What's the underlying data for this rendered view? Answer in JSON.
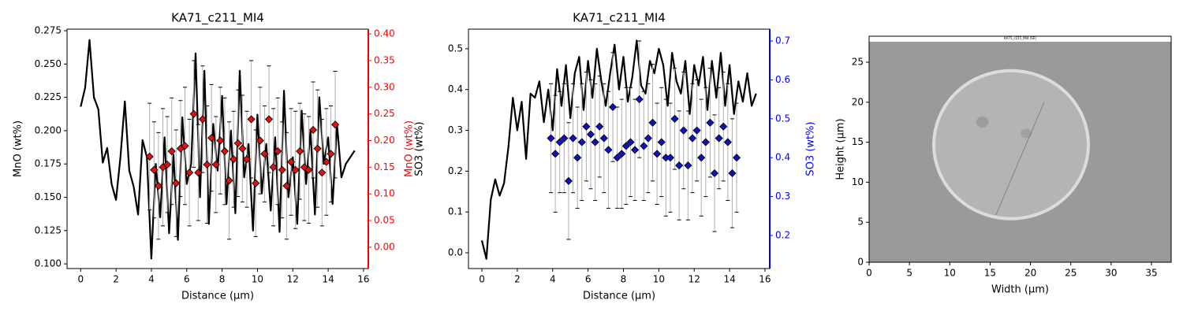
{
  "chart_data": [
    {
      "type": "dual",
      "title": "KA71_c211_MI4",
      "xlabel": "Distance (µm)",
      "ylabel": "MnO (wt%)",
      "y2label": "MnO (wt%)",
      "y2color": "#ff0000",
      "xlim": [
        -0.77,
        16.27
      ],
      "xticks": [
        0,
        2,
        4,
        6,
        8,
        10,
        12,
        14,
        16
      ],
      "ylim": [
        0.0965,
        0.2762
      ],
      "yticks": [
        {
          "value": 0.1,
          "label": "0.100"
        },
        0.125,
        {
          "value": 0.15,
          "label": "0.150"
        },
        0.175,
        {
          "value": 0.2,
          "label": "0.200"
        },
        0.225,
        {
          "value": 0.25,
          "label": "0.250"
        },
        0.275
      ],
      "y2lim": [
        -0.04,
        0.409
      ],
      "y2ticks": [
        {
          "value": 0,
          "label": "0.00"
        },
        0.05,
        {
          "value": 0.1,
          "label": "0.10"
        },
        0.15,
        {
          "value": 0.2,
          "label": "0.20"
        },
        0.25,
        {
          "value": 0.3,
          "label": "0.30"
        },
        0.35,
        {
          "value": 0.4,
          "label": "0.40"
        }
      ],
      "series": [
        {
          "type": "line",
          "color": "#000000",
          "x": [
            0,
            0.25,
            0.5,
            0.75,
            1,
            1.25,
            1.5,
            1.75,
            2,
            2.25,
            2.5,
            2.75,
            3,
            3.25,
            3.5,
            3.75,
            4,
            4.25,
            4.5,
            4.75,
            5,
            5.25,
            5.5,
            5.75,
            6,
            6.25,
            6.5,
            6.75,
            7,
            7.25,
            7.5,
            7.75,
            8,
            8.25,
            8.5,
            8.75,
            9,
            9.25,
            9.5,
            9.75,
            10,
            10.25,
            10.5,
            10.75,
            11,
            11.25,
            11.5,
            11.75,
            12,
            12.25,
            12.5,
            12.75,
            13,
            13.25,
            13.5,
            13.75,
            14,
            14.25,
            14.5,
            14.75,
            15,
            15.25,
            15.5
          ],
          "values": [
            0.218,
            0.232,
            0.268,
            0.225,
            0.216,
            0.176,
            0.187,
            0.16,
            0.148,
            0.18,
            0.222,
            0.17,
            0.158,
            0.137,
            0.193,
            0.18,
            0.104,
            0.175,
            0.135,
            0.195,
            0.123,
            0.182,
            0.118,
            0.21,
            0.16,
            0.175,
            0.258,
            0.15,
            0.245,
            0.13,
            0.205,
            0.17,
            0.226,
            0.145,
            0.2,
            0.138,
            0.245,
            0.165,
            0.19,
            0.125,
            0.212,
            0.153,
            0.19,
            0.14,
            0.195,
            0.124,
            0.23,
            0.15,
            0.18,
            0.13,
            0.215,
            0.16,
            0.2,
            0.137,
            0.225,
            0.175,
            0.195,
            0.145,
            0.205,
            0.165,
            0.175,
            0.18,
            0.185
          ]
        },
        {
          "type": "scatter",
          "axis": "y2",
          "color": "#dd1111",
          "x": [
            3.9,
            4.15,
            4.4,
            4.65,
            4.9,
            5.15,
            5.4,
            5.65,
            5.9,
            6.15,
            6.4,
            6.65,
            6.9,
            7.15,
            7.4,
            7.65,
            7.9,
            8.15,
            8.4,
            8.65,
            8.9,
            9.15,
            9.4,
            9.65,
            9.9,
            10.15,
            10.4,
            10.65,
            10.9,
            11.15,
            11.4,
            11.65,
            11.9,
            12.15,
            12.4,
            12.65,
            12.9,
            13.15,
            13.4,
            13.65,
            13.9,
            14.15,
            14.4
          ],
          "values": [
            0.17,
            0.145,
            0.115,
            0.15,
            0.155,
            0.18,
            0.12,
            0.185,
            0.19,
            0.14,
            0.25,
            0.14,
            0.24,
            0.155,
            0.205,
            0.155,
            0.2,
            0.18,
            0.125,
            0.165,
            0.195,
            0.185,
            0.165,
            0.24,
            0.12,
            0.2,
            0.175,
            0.24,
            0.15,
            0.18,
            0.145,
            0.115,
            0.16,
            0.145,
            0.18,
            0.15,
            0.145,
            0.22,
            0.185,
            0.14,
            0.16,
            0.175,
            0.23
          ],
          "errors": [
            0.1,
            0.09,
            0.1,
            0.11,
            0.09,
            0.1,
            0.1,
            0.09,
            0.11,
            0.1,
            0.1,
            0.09,
            0.1,
            0.11,
            0.1,
            0.09,
            0.1,
            0.1,
            0.11,
            0.09,
            0.1,
            0.1,
            0.09,
            0.11,
            0.1,
            0.1,
            0.09,
            0.1,
            0.11,
            0.1,
            0.09,
            0.1,
            0.1,
            0.11,
            0.09,
            0.1,
            0.1,
            0.09,
            0.11,
            0.1,
            0.1,
            0.09,
            0.1
          ]
        }
      ]
    },
    {
      "type": "dual",
      "title": "KA71_c211_MI4",
      "xlabel": "Distance (µm)",
      "ylabel": "SO3 (wt%)",
      "y2label": "SO3 (wt%)",
      "y2color": "#0000ff",
      "xlim": [
        -0.76,
        16.27
      ],
      "xticks": [
        0,
        2,
        4,
        6,
        8,
        10,
        12,
        14,
        16
      ],
      "ylim": [
        -0.0386,
        0.548
      ],
      "yticks": [
        {
          "value": 0,
          "label": "0.0"
        },
        0.1,
        0.2,
        0.3,
        0.4,
        0.5
      ],
      "y2lim": [
        0.115,
        0.7304
      ],
      "y2ticks": [
        0.2,
        0.3,
        0.4,
        0.5,
        0.6,
        0.7
      ],
      "series": [
        {
          "type": "line",
          "color": "#000000",
          "x": [
            0,
            0.25,
            0.5,
            0.75,
            1,
            1.25,
            1.5,
            1.75,
            2,
            2.25,
            2.5,
            2.75,
            3,
            3.25,
            3.5,
            3.75,
            4,
            4.25,
            4.5,
            4.75,
            5,
            5.25,
            5.5,
            5.75,
            6,
            6.25,
            6.5,
            6.75,
            7,
            7.25,
            7.5,
            7.75,
            8,
            8.25,
            8.5,
            8.75,
            9,
            9.25,
            9.5,
            9.75,
            10,
            10.25,
            10.5,
            10.75,
            11,
            11.25,
            11.5,
            11.75,
            12,
            12.25,
            12.5,
            12.75,
            13,
            13.25,
            13.5,
            13.75,
            14,
            14.25,
            14.5,
            14.75,
            15,
            15.25,
            15.5
          ],
          "values": [
            0.03,
            -0.015,
            0.13,
            0.18,
            0.14,
            0.17,
            0.26,
            0.38,
            0.3,
            0.37,
            0.23,
            0.39,
            0.38,
            0.42,
            0.32,
            0.4,
            0.3,
            0.45,
            0.36,
            0.46,
            0.33,
            0.44,
            0.48,
            0.35,
            0.47,
            0.38,
            0.5,
            0.42,
            0.36,
            0.44,
            0.51,
            0.4,
            0.48,
            0.37,
            0.43,
            0.52,
            0.41,
            0.39,
            0.47,
            0.44,
            0.5,
            0.46,
            0.36,
            0.49,
            0.42,
            0.39,
            0.47,
            0.34,
            0.46,
            0.41,
            0.48,
            0.35,
            0.47,
            0.38,
            0.49,
            0.36,
            0.46,
            0.34,
            0.42,
            0.37,
            0.44,
            0.36,
            0.39
          ]
        },
        {
          "type": "scatter",
          "axis": "y2",
          "color": "#1010c0",
          "x": [
            3.9,
            4.15,
            4.4,
            4.65,
            4.9,
            5.15,
            5.4,
            5.65,
            5.9,
            6.15,
            6.4,
            6.65,
            6.9,
            7.15,
            7.4,
            7.65,
            7.9,
            8.15,
            8.4,
            8.65,
            8.9,
            9.15,
            9.4,
            9.65,
            9.9,
            10.15,
            10.4,
            10.65,
            10.9,
            11.15,
            11.4,
            11.65,
            11.9,
            12.15,
            12.4,
            12.65,
            12.9,
            13.15,
            13.4,
            13.65,
            13.9,
            14.15,
            14.4
          ],
          "values": [
            0.45,
            0.41,
            0.44,
            0.45,
            0.34,
            0.45,
            0.4,
            0.44,
            0.48,
            0.46,
            0.44,
            0.48,
            0.45,
            0.42,
            0.53,
            0.4,
            0.41,
            0.43,
            0.44,
            0.42,
            0.55,
            0.43,
            0.45,
            0.49,
            0.41,
            0.44,
            0.4,
            0.4,
            0.5,
            0.38,
            0.47,
            0.38,
            0.45,
            0.47,
            0.4,
            0.44,
            0.49,
            0.36,
            0.45,
            0.48,
            0.44,
            0.36,
            0.4
          ],
          "errors": [
            0.14,
            0.15,
            0.13,
            0.14,
            0.15,
            0.14,
            0.13,
            0.15,
            0.14,
            0.14,
            0.15,
            0.13,
            0.14,
            0.15,
            0.14,
            0.13,
            0.14,
            0.15,
            0.14,
            0.13,
            0.15,
            0.14,
            0.14,
            0.15,
            0.13,
            0.14,
            0.15,
            0.14,
            0.13,
            0.14,
            0.15,
            0.14,
            0.14,
            0.13,
            0.15,
            0.14,
            0.14,
            0.15,
            0.13,
            0.14,
            0.15,
            0.14,
            0.14
          ]
        }
      ]
    },
    {
      "type": "image",
      "title": "KA71_c211_MI4 (SE)",
      "xlabel": "Width (µm)",
      "ylabel": "Height (µm)",
      "xlim": [
        0,
        37.44
      ],
      "xticks": [
        0,
        5,
        10,
        15,
        20,
        25,
        30,
        35
      ],
      "ylim": [
        0,
        28.25
      ],
      "yticks": [
        0,
        5,
        10,
        15,
        20,
        25
      ]
    }
  ]
}
